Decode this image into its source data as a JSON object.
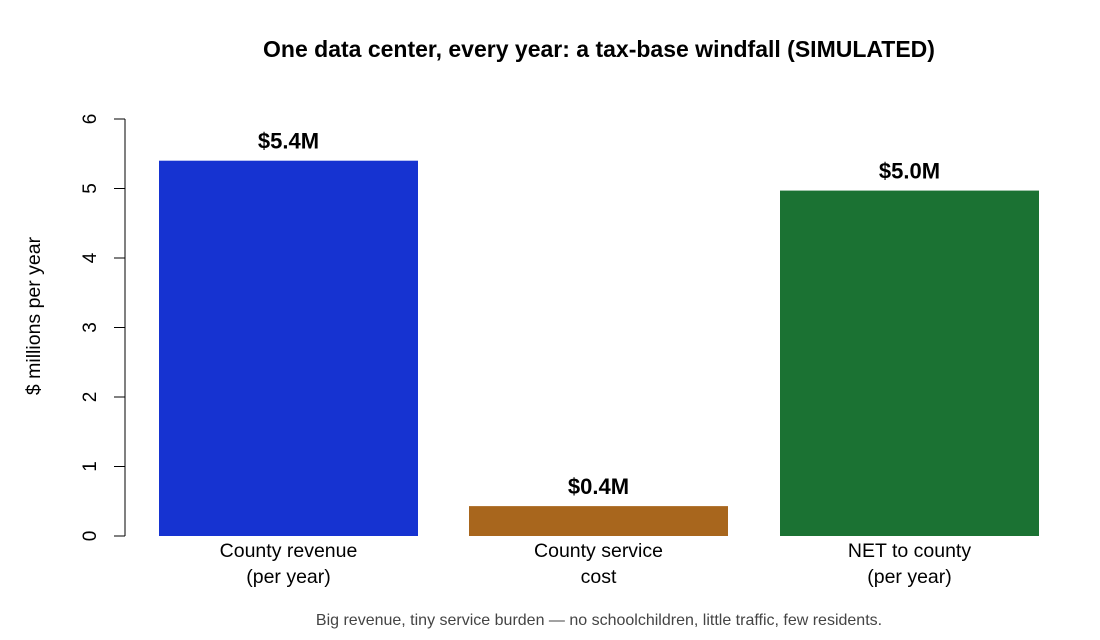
{
  "chart_data": {
    "type": "bar",
    "title": "One data center, every year: a tax-base windfall (SIMULATED)",
    "ylabel": "$ millions per year",
    "xlabel": "",
    "caption": "Big revenue, tiny service burden — no schoolchildren, little traffic, few residents.",
    "ylim": [
      0,
      6
    ],
    "yticks": [
      0,
      1,
      2,
      3,
      4,
      5,
      6
    ],
    "grid": false,
    "categories": [
      [
        "County revenue",
        "(per year)"
      ],
      [
        "County service",
        "cost"
      ],
      [
        "NET to county",
        "(per year)"
      ]
    ],
    "values": [
      5.4,
      0.43,
      4.97
    ],
    "value_labels": [
      "$5.4M",
      "$0.4M",
      "$5.0M"
    ],
    "colors": [
      "#1633d1",
      "#a8661d",
      "#1b7233"
    ]
  }
}
